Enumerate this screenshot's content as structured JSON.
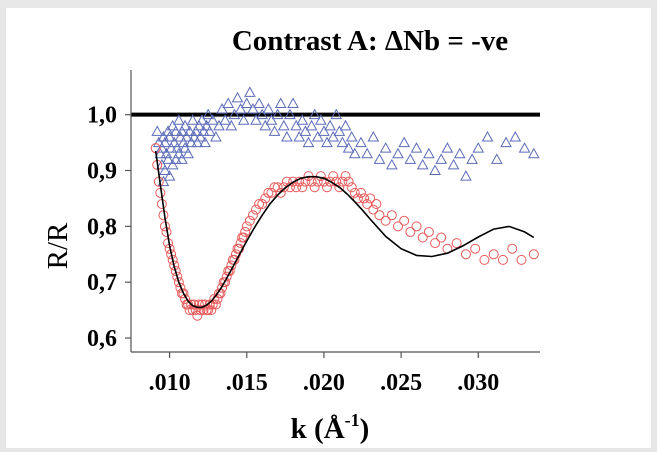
{
  "chart_data": {
    "type": "scatter",
    "title": "Contrast A: ΔNb = -ve",
    "xlabel_base": "k (Å",
    "xlabel_sup": "-1",
    "xlabel_end": ")",
    "ylabel": "R/R",
    "xlim": [
      0.0075,
      0.034
    ],
    "ylim": [
      0.575,
      1.08
    ],
    "xtick_values": [
      0.01,
      0.015,
      0.02,
      0.025,
      0.03
    ],
    "xtick_labels": [
      ".010",
      ".015",
      ".020",
      ".025",
      ".030"
    ],
    "ytick_values": [
      1.0,
      0.9,
      0.8,
      0.7,
      0.6
    ],
    "ytick_labels": [
      "1,0",
      "0,9",
      "0,8",
      "0,7",
      "0,6"
    ],
    "reference_line": {
      "y": 1.0,
      "color": "#000000"
    },
    "colors": {
      "triangles": "#5b6bb8",
      "circles": "#e85a5a",
      "fit": "#000000"
    },
    "series": [
      {
        "marker": "triangle",
        "points": [
          [
            0.0092,
            0.97
          ],
          [
            0.0093,
            0.95
          ],
          [
            0.0094,
            0.93
          ],
          [
            0.0095,
            0.91
          ],
          [
            0.0095,
            0.94
          ],
          [
            0.0096,
            0.96
          ],
          [
            0.0096,
            0.88
          ],
          [
            0.0097,
            0.9
          ],
          [
            0.0097,
            0.95
          ],
          [
            0.0098,
            0.93
          ],
          [
            0.0099,
            0.97
          ],
          [
            0.0099,
            0.92
          ],
          [
            0.01,
            0.96
          ],
          [
            0.01,
            0.89
          ],
          [
            0.0101,
            0.94
          ],
          [
            0.0102,
            0.98
          ],
          [
            0.0102,
            0.91
          ],
          [
            0.0103,
            0.95
          ],
          [
            0.0104,
            0.97
          ],
          [
            0.0104,
            0.92
          ],
          [
            0.0105,
            0.94
          ],
          [
            0.0106,
            0.99
          ],
          [
            0.0106,
            0.93
          ],
          [
            0.0107,
            0.96
          ],
          [
            0.0108,
            0.92
          ],
          [
            0.0108,
            0.97
          ],
          [
            0.0109,
            0.95
          ],
          [
            0.011,
            0.98
          ],
          [
            0.011,
            0.94
          ],
          [
            0.0111,
            0.96
          ],
          [
            0.0112,
            0.93
          ],
          [
            0.0113,
            0.97
          ],
          [
            0.0114,
            0.95
          ],
          [
            0.0115,
            0.99
          ],
          [
            0.0116,
            0.96
          ],
          [
            0.0117,
            0.97
          ],
          [
            0.0118,
            0.95
          ],
          [
            0.0119,
            0.98
          ],
          [
            0.012,
            0.96
          ],
          [
            0.0121,
            0.99
          ],
          [
            0.0122,
            0.97
          ],
          [
            0.0123,
            0.95
          ],
          [
            0.0124,
            0.98
          ],
          [
            0.0125,
            1.0
          ],
          [
            0.0126,
            0.97
          ],
          [
            0.0128,
            0.99
          ],
          [
            0.013,
            0.96
          ],
          [
            0.0132,
            0.98
          ],
          [
            0.0134,
            1.01
          ],
          [
            0.0136,
            0.99
          ],
          [
            0.0138,
            1.02
          ],
          [
            0.014,
            0.98
          ],
          [
            0.0142,
            1.0
          ],
          [
            0.0144,
            1.03
          ],
          [
            0.0146,
            1.01
          ],
          [
            0.0148,
            0.99
          ],
          [
            0.015,
            1.02
          ],
          [
            0.0152,
            1.04
          ],
          [
            0.0154,
            1.01
          ],
          [
            0.0156,
            0.99
          ],
          [
            0.0158,
            1.02
          ],
          [
            0.016,
            1.0
          ],
          [
            0.0162,
            0.98
          ],
          [
            0.0164,
            1.01
          ],
          [
            0.0166,
            0.99
          ],
          [
            0.0168,
            0.97
          ],
          [
            0.017,
            1.0
          ],
          [
            0.0172,
            1.02
          ],
          [
            0.0174,
            0.98
          ],
          [
            0.0176,
            0.96
          ],
          [
            0.0178,
            1.0
          ],
          [
            0.018,
            1.02
          ],
          [
            0.0182,
            0.98
          ],
          [
            0.0184,
            0.96
          ],
          [
            0.0186,
            0.99
          ],
          [
            0.0188,
            0.97
          ],
          [
            0.019,
            0.95
          ],
          [
            0.0192,
            0.98
          ],
          [
            0.0194,
            1.0
          ],
          [
            0.0196,
            0.96
          ],
          [
            0.0198,
            0.99
          ],
          [
            0.02,
            0.97
          ],
          [
            0.0202,
            0.95
          ],
          [
            0.0204,
            0.98
          ],
          [
            0.0206,
            0.96
          ],
          [
            0.0208,
            1.0
          ],
          [
            0.021,
            0.97
          ],
          [
            0.0212,
            0.95
          ],
          [
            0.0214,
            0.98
          ],
          [
            0.0216,
            0.94
          ],
          [
            0.0218,
            0.96
          ],
          [
            0.022,
            0.93
          ],
          [
            0.0224,
            0.95
          ],
          [
            0.0228,
            0.93
          ],
          [
            0.0232,
            0.96
          ],
          [
            0.0236,
            0.92
          ],
          [
            0.024,
            0.94
          ],
          [
            0.0244,
            0.91
          ],
          [
            0.0248,
            0.93
          ],
          [
            0.0252,
            0.95
          ],
          [
            0.0256,
            0.92
          ],
          [
            0.026,
            0.94
          ],
          [
            0.0264,
            0.91
          ],
          [
            0.0268,
            0.93
          ],
          [
            0.0272,
            0.9
          ],
          [
            0.0276,
            0.92
          ],
          [
            0.028,
            0.94
          ],
          [
            0.0284,
            0.91
          ],
          [
            0.0288,
            0.93
          ],
          [
            0.0292,
            0.89
          ],
          [
            0.0296,
            0.92
          ],
          [
            0.03,
            0.94
          ],
          [
            0.0306,
            0.96
          ],
          [
            0.0312,
            0.92
          ],
          [
            0.0318,
            0.95
          ],
          [
            0.0324,
            0.96
          ],
          [
            0.033,
            0.94
          ],
          [
            0.0336,
            0.93
          ]
        ]
      },
      {
        "marker": "circle",
        "points": [
          [
            0.0091,
            0.94
          ],
          [
            0.0092,
            0.91
          ],
          [
            0.0093,
            0.88
          ],
          [
            0.0094,
            0.86
          ],
          [
            0.0095,
            0.84
          ],
          [
            0.0096,
            0.82
          ],
          [
            0.0097,
            0.8
          ],
          [
            0.0098,
            0.79
          ],
          [
            0.0099,
            0.77
          ],
          [
            0.01,
            0.76
          ],
          [
            0.0101,
            0.75
          ],
          [
            0.0102,
            0.74
          ],
          [
            0.0103,
            0.73
          ],
          [
            0.0104,
            0.72
          ],
          [
            0.0105,
            0.71
          ],
          [
            0.0106,
            0.7
          ],
          [
            0.0107,
            0.69
          ],
          [
            0.0108,
            0.68
          ],
          [
            0.0109,
            0.68
          ],
          [
            0.011,
            0.67
          ],
          [
            0.0111,
            0.66
          ],
          [
            0.0112,
            0.66
          ],
          [
            0.0113,
            0.65
          ],
          [
            0.0114,
            0.66
          ],
          [
            0.0115,
            0.65
          ],
          [
            0.0116,
            0.66
          ],
          [
            0.0117,
            0.65
          ],
          [
            0.0118,
            0.64
          ],
          [
            0.0119,
            0.66
          ],
          [
            0.012,
            0.65
          ],
          [
            0.0121,
            0.66
          ],
          [
            0.0122,
            0.65
          ],
          [
            0.0123,
            0.66
          ],
          [
            0.0124,
            0.65
          ],
          [
            0.0125,
            0.65
          ],
          [
            0.0126,
            0.66
          ],
          [
            0.0127,
            0.65
          ],
          [
            0.0128,
            0.66
          ],
          [
            0.0129,
            0.67
          ],
          [
            0.013,
            0.66
          ],
          [
            0.0131,
            0.67
          ],
          [
            0.0132,
            0.68
          ],
          [
            0.0133,
            0.68
          ],
          [
            0.0134,
            0.69
          ],
          [
            0.0135,
            0.7
          ],
          [
            0.0136,
            0.7
          ],
          [
            0.0137,
            0.71
          ],
          [
            0.0138,
            0.72
          ],
          [
            0.0139,
            0.72
          ],
          [
            0.014,
            0.73
          ],
          [
            0.0141,
            0.74
          ],
          [
            0.0142,
            0.74
          ],
          [
            0.0143,
            0.75
          ],
          [
            0.0144,
            0.76
          ],
          [
            0.0145,
            0.76
          ],
          [
            0.0146,
            0.77
          ],
          [
            0.0147,
            0.78
          ],
          [
            0.0148,
            0.78
          ],
          [
            0.0149,
            0.79
          ],
          [
            0.015,
            0.8
          ],
          [
            0.0152,
            0.81
          ],
          [
            0.0154,
            0.82
          ],
          [
            0.0156,
            0.83
          ],
          [
            0.0158,
            0.84
          ],
          [
            0.016,
            0.84
          ],
          [
            0.0162,
            0.85
          ],
          [
            0.0164,
            0.86
          ],
          [
            0.0166,
            0.86
          ],
          [
            0.0168,
            0.87
          ],
          [
            0.017,
            0.87
          ],
          [
            0.0172,
            0.86
          ],
          [
            0.0174,
            0.87
          ],
          [
            0.0176,
            0.88
          ],
          [
            0.0178,
            0.87
          ],
          [
            0.018,
            0.88
          ],
          [
            0.0182,
            0.87
          ],
          [
            0.0184,
            0.88
          ],
          [
            0.0186,
            0.87
          ],
          [
            0.0188,
            0.88
          ],
          [
            0.019,
            0.89
          ],
          [
            0.0192,
            0.88
          ],
          [
            0.0194,
            0.87
          ],
          [
            0.0196,
            0.88
          ],
          [
            0.0198,
            0.89
          ],
          [
            0.02,
            0.88
          ],
          [
            0.0202,
            0.87
          ],
          [
            0.0204,
            0.88
          ],
          [
            0.0206,
            0.89
          ],
          [
            0.0208,
            0.88
          ],
          [
            0.021,
            0.87
          ],
          [
            0.0212,
            0.88
          ],
          [
            0.0214,
            0.89
          ],
          [
            0.0216,
            0.88
          ],
          [
            0.0218,
            0.87
          ],
          [
            0.022,
            0.86
          ],
          [
            0.0222,
            0.85
          ],
          [
            0.0224,
            0.86
          ],
          [
            0.0226,
            0.85
          ],
          [
            0.0228,
            0.84
          ],
          [
            0.023,
            0.85
          ],
          [
            0.0232,
            0.83
          ],
          [
            0.0234,
            0.84
          ],
          [
            0.0236,
            0.82
          ],
          [
            0.024,
            0.81
          ],
          [
            0.0244,
            0.82
          ],
          [
            0.0248,
            0.8
          ],
          [
            0.0252,
            0.81
          ],
          [
            0.0256,
            0.79
          ],
          [
            0.026,
            0.8
          ],
          [
            0.0264,
            0.78
          ],
          [
            0.0268,
            0.79
          ],
          [
            0.0272,
            0.77
          ],
          [
            0.0276,
            0.78
          ],
          [
            0.028,
            0.76
          ],
          [
            0.0286,
            0.77
          ],
          [
            0.0292,
            0.75
          ],
          [
            0.0298,
            0.76
          ],
          [
            0.0304,
            0.74
          ],
          [
            0.031,
            0.75
          ],
          [
            0.0316,
            0.74
          ],
          [
            0.0322,
            0.76
          ],
          [
            0.0328,
            0.74
          ],
          [
            0.0336,
            0.75
          ]
        ]
      }
    ],
    "fit_curve": [
      [
        0.0091,
        0.935
      ],
      [
        0.0094,
        0.875
      ],
      [
        0.0097,
        0.815
      ],
      [
        0.01,
        0.765
      ],
      [
        0.0103,
        0.728
      ],
      [
        0.0106,
        0.7
      ],
      [
        0.0109,
        0.68
      ],
      [
        0.0112,
        0.666
      ],
      [
        0.0115,
        0.658
      ],
      [
        0.0118,
        0.655
      ],
      [
        0.0121,
        0.655
      ],
      [
        0.0124,
        0.659
      ],
      [
        0.0127,
        0.666
      ],
      [
        0.013,
        0.676
      ],
      [
        0.0133,
        0.688
      ],
      [
        0.0136,
        0.702
      ],
      [
        0.014,
        0.722
      ],
      [
        0.0145,
        0.748
      ],
      [
        0.015,
        0.774
      ],
      [
        0.0155,
        0.798
      ],
      [
        0.016,
        0.82
      ],
      [
        0.0165,
        0.84
      ],
      [
        0.017,
        0.856
      ],
      [
        0.0175,
        0.869
      ],
      [
        0.018,
        0.879
      ],
      [
        0.0185,
        0.886
      ],
      [
        0.019,
        0.889
      ],
      [
        0.0195,
        0.889
      ],
      [
        0.02,
        0.886
      ],
      [
        0.0205,
        0.879
      ],
      [
        0.021,
        0.87
      ],
      [
        0.0215,
        0.858
      ],
      [
        0.022,
        0.844
      ],
      [
        0.0225,
        0.829
      ],
      [
        0.023,
        0.813
      ],
      [
        0.024,
        0.782
      ],
      [
        0.025,
        0.76
      ],
      [
        0.026,
        0.748
      ],
      [
        0.027,
        0.746
      ],
      [
        0.028,
        0.752
      ],
      [
        0.029,
        0.765
      ],
      [
        0.03,
        0.781
      ],
      [
        0.031,
        0.795
      ],
      [
        0.032,
        0.8
      ],
      [
        0.033,
        0.79
      ],
      [
        0.0336,
        0.78
      ]
    ]
  }
}
